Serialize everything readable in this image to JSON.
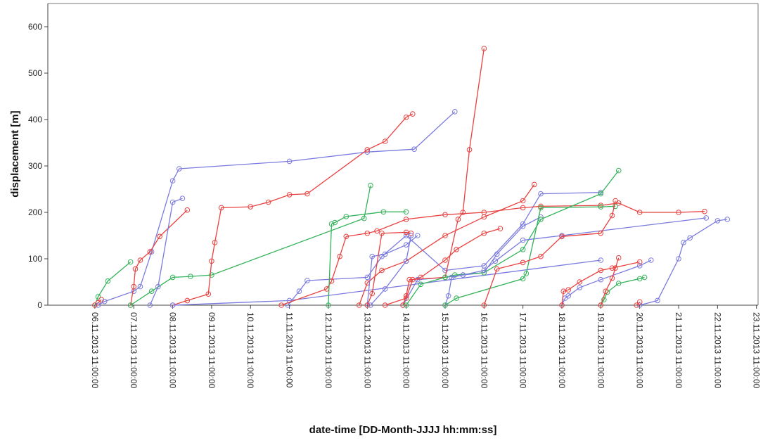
{
  "chart_data": {
    "type": "line",
    "xlabel": "date-time [DD-Month-JJJJ hh:mm:ss]",
    "ylabel": "displacement [m]",
    "ylim": [
      0,
      650
    ],
    "yticks": [
      0,
      100,
      200,
      300,
      400,
      500,
      600
    ],
    "xlim_days": [
      5.25,
      23.5
    ],
    "xticks": [
      "06.11.2013 11:00:00",
      "07.11.2013 11:00:00",
      "08.11.2013 11:00:00",
      "09.11.2013 11:00:00",
      "10.11.2013 11:00:00",
      "11.11.2013 11:00:00",
      "12.11.2013 11:00:00",
      "13.11.2013 11:00:00",
      "14.11.2013 11:00:00",
      "15.11.2013 11:00:00",
      "16.11.2013 11:00:00",
      "17.11.2013 11:00:00",
      "18.11.2013 11:00:00",
      "19.11.2013 11:00:00",
      "20.11.2013 11:00:00",
      "21.11.2013 11:00:00",
      "22.11.2013 11:00:00",
      "23.11.2013 11:00:00"
    ],
    "grid": false,
    "series_colors": {
      "red": "#e8413f",
      "blue": "#7b7bdf",
      "green": "#33b35a"
    },
    "series": [
      {
        "color": "green",
        "x": [
          "06.11.2013 11:00",
          "06.11.2013 13:00",
          "06.11.2013 19:00",
          "07.11.2013 09:00"
        ],
        "y": [
          0,
          18,
          52,
          93
        ]
      },
      {
        "color": "red",
        "x": [
          "06.11.2013 11:00",
          "06.11.2013 13:00",
          "06.11.2013 15:00"
        ],
        "y": [
          0,
          5,
          12
        ]
      },
      {
        "color": "blue",
        "x": [
          "06.11.2013 13:00",
          "06.11.2013 17:00",
          "07.11.2013 11:00",
          "07.11.2013 15:00",
          "07.11.2013 22:00",
          "08.11.2013 11:00",
          "08.11.2013 15:00",
          "11.11.2013 11:00",
          "13.11.2013 11:00",
          "14.11.2013 16:00",
          "15.11.2013 17:00"
        ],
        "y": [
          0,
          8,
          30,
          40,
          115,
          268,
          294,
          310,
          330,
          336,
          417
        ]
      },
      {
        "color": "red",
        "x": [
          "07.11.2013 09:00",
          "07.11.2013 11:00",
          "07.11.2013 12:00",
          "07.11.2013 15:00",
          "07.11.2013 21:00",
          "08.11.2013 03:00",
          "08.11.2013 20:00"
        ],
        "y": [
          0,
          40,
          78,
          97,
          115,
          148,
          205
        ]
      },
      {
        "color": "green",
        "x": [
          "07.11.2013 09:00",
          "07.11.2013 22:00",
          "08.11.2013 11:00",
          "08.11.2013 22:00",
          "09.11.2013 11:00",
          "13.11.2013 09:00",
          "13.11.2013 13:00"
        ],
        "y": [
          0,
          30,
          60,
          62,
          65,
          187,
          258
        ]
      },
      {
        "color": "blue",
        "x": [
          "07.11.2013 21:00",
          "08.11.2013 02:00",
          "08.11.2013 11:00",
          "08.11.2013 17:00"
        ],
        "y": [
          0,
          40,
          222,
          230
        ]
      },
      {
        "color": "red",
        "x": [
          "08.11.2013 11:00",
          "08.11.2013 20:00",
          "09.11.2013 09:00",
          "09.11.2013 11:00",
          "09.11.2013 13:00",
          "09.11.2013 17:00",
          "10.11.2013 11:00",
          "10.11.2013 22:00",
          "11.11.2013 11:00",
          "11.11.2013 22:00",
          "13.11.2013 11:00",
          "13.11.2013 22:00",
          "14.11.2013 11:00",
          "14.11.2013 15:00"
        ],
        "y": [
          0,
          10,
          24,
          95,
          135,
          210,
          212,
          222,
          238,
          240,
          335,
          353,
          405,
          412
        ]
      },
      {
        "color": "blue",
        "x": [
          "08.11.2013 11:00",
          "11.11.2013 11:00",
          "19.11.2013 11:00"
        ],
        "y": [
          0,
          10,
          97
        ]
      },
      {
        "color": "blue",
        "x": [
          "11.11.2013 10:00",
          "11.11.2013 17:00",
          "11.11.2013 22:00",
          "13.11.2013 11:00",
          "13.11.2013 20:00",
          "14.11.2013 11:00",
          "15.11.2013 11:00",
          "16.11.2013 11:00",
          "17.11.2013 11:00",
          "17.11.2013 22:00",
          "19.11.2013 11:00"
        ],
        "y": [
          0,
          30,
          53,
          60,
          105,
          150,
          75,
          85,
          175,
          240,
          243
        ]
      },
      {
        "color": "red",
        "x": [
          "11.11.2013 06:00",
          "12.11.2013 10:00",
          "12.11.2013 13:00",
          "12.11.2013 18:00",
          "12.11.2013 22:00",
          "13.11.2013 11:00",
          "13.11.2013 17:00",
          "14.11.2013 11:00",
          "15.11.2013 11:00",
          "16.11.2013 11:00",
          "17.11.2013 11:00",
          "17.11.2013 22:00",
          "19.11.2013 11:00",
          "19.11.2013 22:00",
          "20.11.2013 11:00",
          "21.11.2013 11:00",
          "22.11.2013 03:00"
        ],
        "y": [
          0,
          35,
          52,
          105,
          148,
          155,
          160,
          185,
          195,
          200,
          210,
          213,
          215,
          220,
          200,
          200,
          202
        ]
      },
      {
        "color": "green",
        "x": [
          "12.11.2013 11:00",
          "12.11.2013 13:00",
          "12.11.2013 15:00",
          "12.11.2013 22:00",
          "13.11.2013 21:00",
          "14.11.2013 11:00"
        ],
        "y": [
          0,
          175,
          178,
          191,
          201,
          201
        ]
      },
      {
        "color": "red",
        "x": [
          "13.11.2013 06:00",
          "13.11.2013 11:00",
          "13.11.2013 20:00",
          "14.11.2013 11:00",
          "15.11.2013 11:00",
          "16.11.2013 11:00",
          "17.11.2013 11:00",
          "17.11.2013 18:00"
        ],
        "y": [
          0,
          48,
          75,
          95,
          150,
          190,
          225,
          260
        ]
      },
      {
        "color": "blue",
        "x": [
          "13.11.2013 11:00",
          "13.11.2013 14:00",
          "13.11.2013 22:00",
          "14.11.2013 11:00",
          "14.11.2013 18:00"
        ],
        "y": [
          0,
          105,
          110,
          130,
          150
        ]
      },
      {
        "color": "red",
        "x": [
          "13.11.2013 11:00",
          "13.11.2013 14:00",
          "13.11.2013 20:00",
          "14.11.2013 11:00",
          "14.11.2013 14:00"
        ],
        "y": [
          0,
          25,
          155,
          157,
          155
        ]
      },
      {
        "color": "blue",
        "x": [
          "13.11.2013 13:00",
          "13.11.2013 22:00",
          "14.11.2013 11:00",
          "14.11.2013 14:00"
        ],
        "y": [
          0,
          35,
          95,
          150
        ]
      },
      {
        "color": "red",
        "x": [
          "13.11.2013 22:00",
          "14.11.2013 11:00",
          "14.11.2013 15:00",
          "14.11.2013 20:00",
          "15.11.2013 11:00",
          "15.11.2013 18:00",
          "16.11.2013 11:00",
          "16.11.2013 21:00"
        ],
        "y": [
          0,
          15,
          55,
          60,
          97,
          120,
          155,
          165
        ]
      },
      {
        "color": "blue",
        "x": [
          "14.11.2013 09:00",
          "14.11.2013 18:00",
          "15.11.2013 11:00",
          "15.11.2013 22:00",
          "16.11.2013 11:00",
          "16.11.2013 19:00",
          "17.11.2013 11:00",
          "17.11.2013 22:00"
        ],
        "y": [
          0,
          55,
          60,
          65,
          70,
          110,
          170,
          190
        ]
      },
      {
        "color": "red",
        "x": [
          "14.11.2013 09:00",
          "14.11.2013 11:00",
          "14.11.2013 13:00",
          "15.11.2013 11:00",
          "15.11.2013 19:00",
          "15.11.2013 22:00",
          "16.11.2013 02:00",
          "16.11.2013 11:00"
        ],
        "y": [
          0,
          20,
          55,
          60,
          185,
          200,
          335,
          553
        ]
      },
      {
        "color": "green",
        "x": [
          "14.11.2013 11:00",
          "14.11.2013 20:00",
          "15.11.2013 11:00",
          "15.11.2013 17:00",
          "16.11.2013 11:00",
          "17.11.2013 11:00",
          "17.11.2013 22:00",
          "19.11.2013 11:00",
          "19.11.2013 22:00"
        ],
        "y": [
          0,
          45,
          60,
          65,
          70,
          120,
          185,
          240,
          290
        ]
      },
      {
        "color": "blue",
        "x": [
          "15.11.2013 11:00",
          "15.11.2013 13:00",
          "15.11.2013 15:00",
          "15.11.2013 22:00",
          "16.11.2013 11:00",
          "16.11.2013 18:00",
          "17.11.2013 11:00",
          "18.11.2013 11:00",
          "22.11.2013 04:00"
        ],
        "y": [
          0,
          20,
          60,
          65,
          75,
          95,
          140,
          150,
          188
        ]
      },
      {
        "color": "green",
        "x": [
          "15.11.2013 11:00",
          "15.11.2013 18:00",
          "17.11.2013 11:00",
          "17.11.2013 13:00",
          "17.11.2013 22:00",
          "19.11.2013 11:00",
          "19.11.2013 20:00"
        ],
        "y": [
          0,
          15,
          57,
          68,
          210,
          212,
          213
        ]
      },
      {
        "color": "red",
        "x": [
          "16.11.2013 11:00",
          "16.11.2013 19:00",
          "17.11.2013 11:00",
          "17.11.2013 22:00",
          "18.11.2013 11:00",
          "19.11.2013 11:00",
          "19.11.2013 18:00",
          "19.11.2013 20:00"
        ],
        "y": [
          0,
          78,
          92,
          105,
          148,
          155,
          193,
          225
        ]
      },
      {
        "color": "blue",
        "x": [
          "18.11.2013 11:00",
          "18.11.2013 13:00",
          "18.11.2013 15:00",
          "18.11.2013 22:00",
          "19.11.2013 11:00",
          "20.11.2013 11:00",
          "20.11.2013 18:00"
        ],
        "y": [
          0,
          15,
          20,
          38,
          55,
          85,
          97
        ]
      },
      {
        "color": "red",
        "x": [
          "18.11.2013 11:00",
          "18.11.2013 12:00",
          "18.11.2013 15:00",
          "18.11.2013 22:00",
          "19.11.2013 11:00",
          "19.11.2013 18:00",
          "20.11.2013 11:00"
        ],
        "y": [
          0,
          30,
          33,
          50,
          75,
          80,
          93
        ]
      },
      {
        "color": "green",
        "x": [
          "19.11.2013 11:00",
          "19.11.2013 13:00",
          "19.11.2013 15:00",
          "19.11.2013 22:00",
          "20.11.2013 11:00",
          "20.11.2013 14:00"
        ],
        "y": [
          0,
          12,
          28,
          47,
          57,
          60
        ]
      },
      {
        "color": "red",
        "x": [
          "19.11.2013 11:00",
          "19.11.2013 14:00",
          "19.11.2013 18:00",
          "19.11.2013 20:00",
          "19.11.2013 22:00"
        ],
        "y": [
          0,
          30,
          58,
          80,
          102
        ]
      },
      {
        "color": "blue",
        "x": [
          "20.11.2013 11:00",
          "20.11.2013 22:00",
          "21.11.2013 11:00",
          "21.11.2013 14:00",
          "21.11.2013 18:00",
          "22.11.2013 11:00",
          "22.11.2013 17:00"
        ],
        "y": [
          0,
          10,
          100,
          135,
          145,
          182,
          185
        ]
      },
      {
        "color": "red",
        "x": [
          "20.11.2013 09:00",
          "20.11.2013 11:00"
        ],
        "y": [
          0,
          7
        ]
      }
    ]
  }
}
